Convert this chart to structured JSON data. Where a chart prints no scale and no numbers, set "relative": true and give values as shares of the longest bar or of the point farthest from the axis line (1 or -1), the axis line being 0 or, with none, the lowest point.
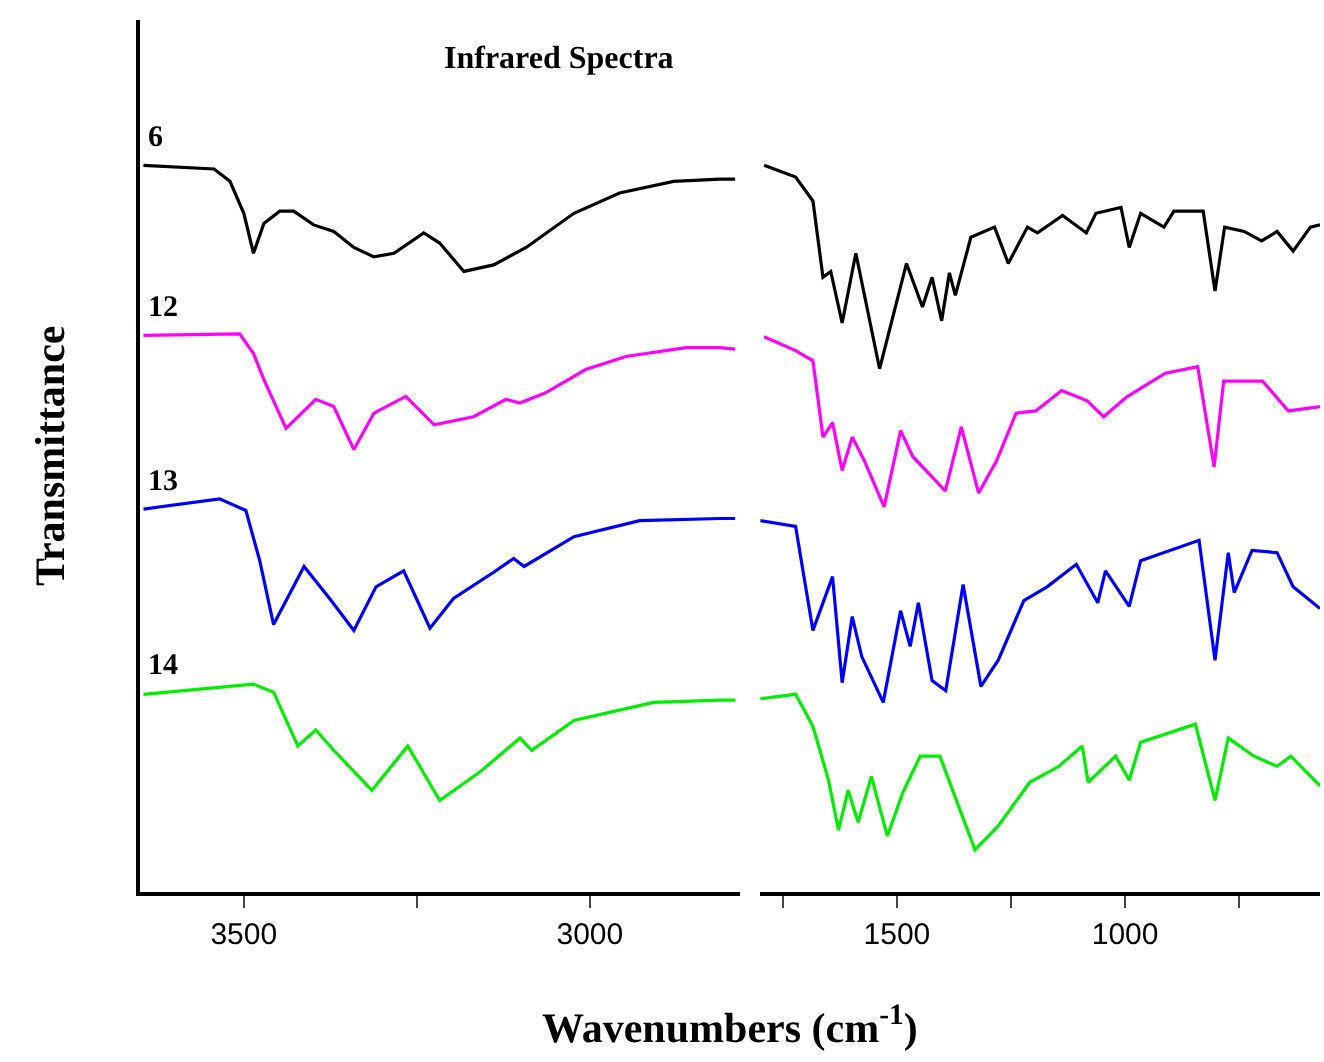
{
  "chart_data": [
    {
      "type": "line",
      "title": "Infrared Spectra",
      "xlabel": "Wavenumbers (cm$^{-1}$)",
      "ylabel": "Transmittance",
      "relative": true,
      "tick_labels": "x",
      "marker": "none",
      "line_style": "solid",
      "xlim": [
        3650,
        2783
      ],
      "xticks": [
        3500,
        {
          "value": 3250,
          "label": null
        },
        3000
      ],
      "series": [
        {
          "name": "6",
          "color": "#000000",
          "x": [
            3645,
            3543,
            3520,
            3500,
            3486,
            3471,
            3448,
            3428,
            3399,
            3370,
            3341,
            3312,
            3283,
            3240,
            3217,
            3182,
            3139,
            3092,
            3023,
            2957,
            2879,
            2812,
            2790
          ],
          "values": [
            1.0,
            0.995,
            0.978,
            0.934,
            0.879,
            0.92,
            0.937,
            0.937,
            0.918,
            0.909,
            0.887,
            0.874,
            0.879,
            0.907,
            0.893,
            0.854,
            0.863,
            0.887,
            0.934,
            0.962,
            0.978,
            0.981,
            0.981
          ]
        },
        {
          "name": "12",
          "color": "#ff00ff",
          "x": [
            3645,
            3506,
            3486,
            3471,
            3439,
            3396,
            3370,
            3341,
            3312,
            3266,
            3225,
            3168,
            3121,
            3101,
            3064,
            3006,
            2948,
            2861,
            2812,
            2790
          ],
          "values": [
            0.766,
            0.768,
            0.741,
            0.705,
            0.638,
            0.678,
            0.668,
            0.609,
            0.659,
            0.682,
            0.643,
            0.654,
            0.678,
            0.673,
            0.687,
            0.719,
            0.737,
            0.749,
            0.749,
            0.747
          ]
        },
        {
          "name": "13",
          "color": "#0000ff",
          "x": [
            3645,
            3535,
            3497,
            3477,
            3457,
            3413,
            3376,
            3341,
            3309,
            3269,
            3231,
            3197,
            3139,
            3110,
            3095,
            3023,
            2928,
            2812,
            2790
          ],
          "values": [
            0.527,
            0.541,
            0.525,
            0.456,
            0.368,
            0.448,
            0.404,
            0.36,
            0.42,
            0.442,
            0.363,
            0.404,
            0.44,
            0.459,
            0.448,
            0.489,
            0.511,
            0.514,
            0.514
          ]
        },
        {
          "name": "14",
          "color": "#00ee00",
          "x": [
            3645,
            3486,
            3457,
            3422,
            3396,
            3367,
            3315,
            3263,
            3217,
            3159,
            3101,
            3084,
            3023,
            2908,
            2812,
            2790
          ],
          "values": [
            0.272,
            0.286,
            0.275,
            0.201,
            0.223,
            0.192,
            0.14,
            0.201,
            0.126,
            0.165,
            0.212,
            0.195,
            0.236,
            0.261,
            0.264,
            0.264
          ]
        }
      ]
    },
    {
      "type": "line",
      "relative": true,
      "tick_labels": "x",
      "marker": "none",
      "line_style": "solid",
      "xlim": [
        1800,
        573
      ],
      "xticks": [
        {
          "value": 1750,
          "label": null
        },
        1500,
        {
          "value": 1250,
          "label": null
        },
        1000,
        {
          "value": 750,
          "label": null
        }
      ],
      "series": [
        {
          "color": "#000000",
          "x": [
            1791,
            1722,
            1684,
            1662,
            1645,
            1620,
            1590,
            1538,
            1479,
            1444,
            1423,
            1402,
            1385,
            1372,
            1338,
            1286,
            1256,
            1214,
            1192,
            1137,
            1085,
            1064,
            1009,
            991,
            966,
            915,
            893,
            829,
            803,
            782,
            739,
            701,
            667,
            632,
            594,
            573
          ],
          "values": [
            1.0,
            0.984,
            0.951,
            0.846,
            0.854,
            0.783,
            0.879,
            0.72,
            0.865,
            0.805,
            0.846,
            0.786,
            0.852,
            0.821,
            0.901,
            0.915,
            0.865,
            0.915,
            0.907,
            0.931,
            0.907,
            0.934,
            0.942,
            0.887,
            0.934,
            0.915,
            0.937,
            0.937,
            0.827,
            0.915,
            0.909,
            0.896,
            0.909,
            0.882,
            0.915,
            0.918
          ]
        },
        {
          "color": "#ff00ff",
          "x": [
            1791,
            1722,
            1684,
            1662,
            1641,
            1620,
            1598,
            1571,
            1528,
            1492,
            1465,
            1436,
            1394,
            1359,
            1321,
            1282,
            1239,
            1196,
            1139,
            1083,
            1047,
            997,
            912,
            841,
            805,
            784,
            699,
            642,
            573
          ],
          "values": [
            0.764,
            0.745,
            0.731,
            0.626,
            0.646,
            0.58,
            0.626,
            0.593,
            0.53,
            0.635,
            0.599,
            0.58,
            0.552,
            0.64,
            0.549,
            0.593,
            0.659,
            0.662,
            0.69,
            0.676,
            0.654,
            0.681,
            0.714,
            0.723,
            0.585,
            0.703,
            0.703,
            0.662,
            0.668
          ]
        },
        {
          "color": "#0000ff",
          "x": [
            1799,
            1722,
            1684,
            1641,
            1620,
            1598,
            1577,
            1530,
            1492,
            1471,
            1453,
            1423,
            1393,
            1355,
            1316,
            1278,
            1222,
            1171,
            1107,
            1060,
            1043,
            991,
            966,
            838,
            803,
            774,
            761,
            722,
            667,
            632,
            573
          ],
          "values": [
            0.511,
            0.503,
            0.36,
            0.434,
            0.288,
            0.379,
            0.324,
            0.261,
            0.387,
            0.338,
            0.398,
            0.291,
            0.277,
            0.423,
            0.283,
            0.319,
            0.401,
            0.42,
            0.451,
            0.398,
            0.442,
            0.393,
            0.456,
            0.484,
            0.319,
            0.467,
            0.412,
            0.47,
            0.467,
            0.42,
            0.39
          ]
        },
        {
          "color": "#00ee00",
          "x": [
            1799,
            1722,
            1684,
            1650,
            1628,
            1607,
            1585,
            1556,
            1521,
            1487,
            1449,
            1406,
            1329,
            1278,
            1209,
            1145,
            1094,
            1081,
            1021,
            991,
            966,
            846,
            803,
            774,
            718,
            667,
            637,
            573
          ],
          "values": [
            0.266,
            0.272,
            0.228,
            0.154,
            0.085,
            0.14,
            0.096,
            0.159,
            0.077,
            0.137,
            0.187,
            0.187,
            0.058,
            0.091,
            0.151,
            0.173,
            0.201,
            0.151,
            0.187,
            0.154,
            0.206,
            0.231,
            0.126,
            0.212,
            0.187,
            0.173,
            0.187,
            0.146
          ]
        }
      ]
    }
  ]
}
